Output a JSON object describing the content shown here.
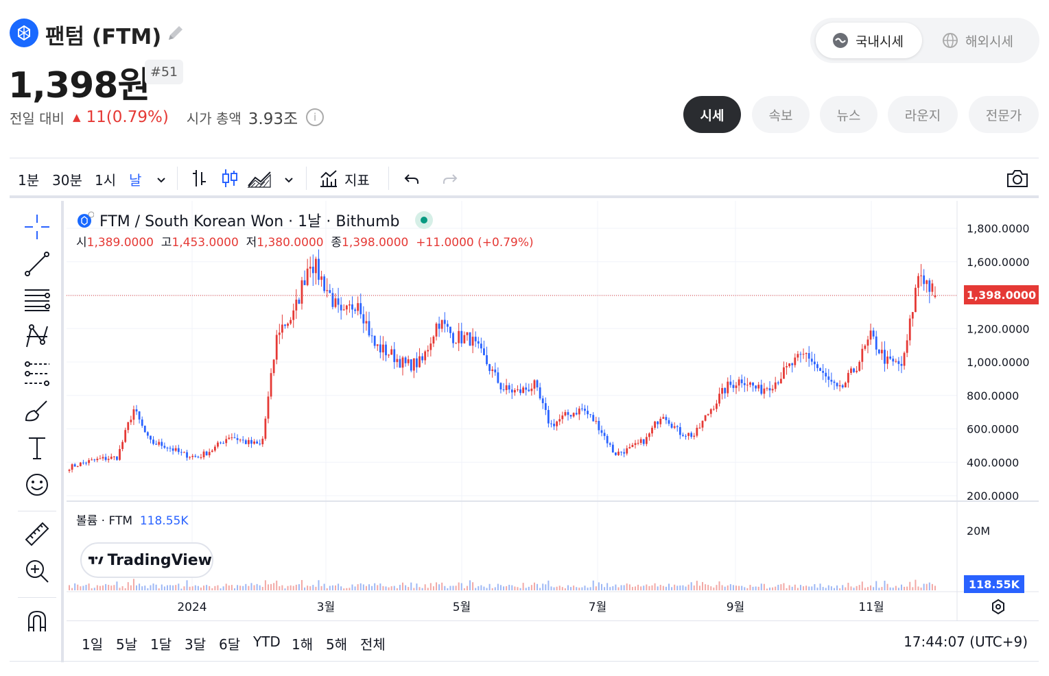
{
  "coin": {
    "name": "팬텀 (FTM)",
    "price": "1,398원",
    "rank": "#51"
  },
  "change": {
    "label": "전일 대비",
    "value": "11(0.79%)",
    "mcap_label": "시가 총액",
    "mcap_value": "3.93조"
  },
  "market_toggle": {
    "domestic": "국내시세",
    "overseas": "해외시세"
  },
  "tabs": [
    "시세",
    "속보",
    "뉴스",
    "라운지",
    "전문가"
  ],
  "toolbar": {
    "intervals": [
      "1분",
      "30분",
      "1시",
      "날"
    ],
    "indicators_label": "지표"
  },
  "chart_legend": {
    "title": "FTM / South Korean Won · 1날 · Bithumb",
    "open_label": "시",
    "open": "1,389.0000",
    "high_label": "고",
    "high": "1,453.0000",
    "low_label": "저",
    "low": "1,380.0000",
    "close_label": "종",
    "close": "1,398.0000",
    "change": "+11.0000 (+0.79%)",
    "volume_label": "볼륨 · FTM",
    "volume": "118.55K"
  },
  "price_tag": "1,398.0000",
  "volume_tag": "118.55K",
  "price_axis_labels": [
    "1,800.0000",
    "1,600.0000",
    "1,400.0000",
    "1,200.0000",
    "1,000.0000",
    "800.0000",
    "600.0000",
    "400.0000",
    "200.0000"
  ],
  "volume_axis_label": "20M",
  "time_axis_labels": [
    "2024",
    "3월",
    "5월",
    "7월",
    "9월",
    "11월"
  ],
  "range_buttons": [
    "1일",
    "5날",
    "1달",
    "3달",
    "6달",
    "YTD",
    "1해",
    "5해",
    "전체"
  ],
  "clock": "17:44:07 (UTC+9)",
  "watermark": "TradingView",
  "colors": {
    "up": "#e53935",
    "down": "#2962ff",
    "accent": "#1969ff"
  },
  "chart_data": {
    "type": "candlestick",
    "ylim": [
      200,
      1800
    ],
    "x": [
      "2023-11",
      "2023-12",
      "2024-01",
      "2024-02",
      "2024-03",
      "2024-04",
      "2024-05",
      "2024-06",
      "2024-07",
      "2024-08",
      "2024-09",
      "2024-10",
      "2024-11",
      "2024-12"
    ],
    "close_path": [
      370,
      400,
      420,
      430,
      720,
      520,
      500,
      450,
      430,
      480,
      560,
      520,
      500,
      1190,
      1280,
      1620,
      1450,
      1260,
      1380,
      1100,
      1050,
      980,
      1000,
      1250,
      1150,
      1140,
      1000,
      840,
      820,
      860,
      620,
      680,
      720,
      620,
      450,
      480,
      540,
      700,
      580,
      560,
      720,
      850,
      900,
      830,
      880,
      980,
      1050,
      920,
      820,
      960,
      1150,
      1000,
      980,
      1550,
      1398
    ],
    "last": {
      "open": 1389,
      "high": 1453,
      "low": 1380,
      "close": 1398
    }
  }
}
